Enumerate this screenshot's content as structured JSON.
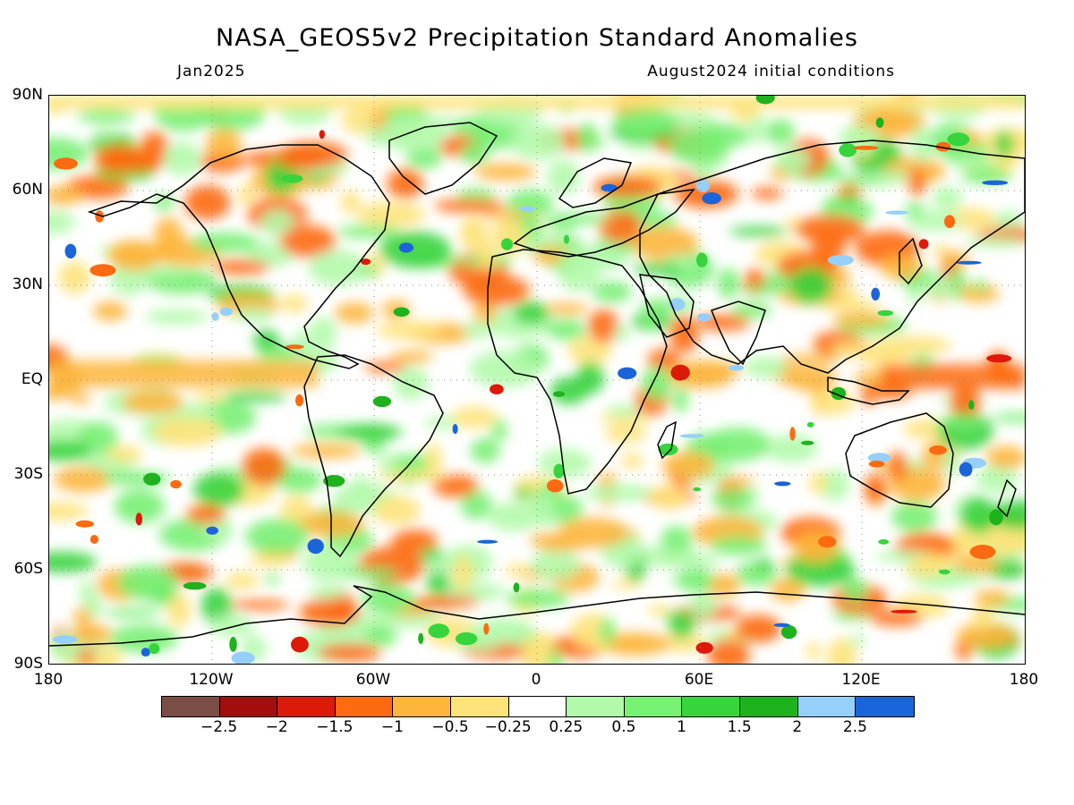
{
  "header": {
    "title": "NASA_GEOS5v2 Precipitation Standard Anomalies",
    "month": "Jan2025",
    "initial_conditions": "August2024 initial conditions"
  },
  "map": {
    "lat_labels": [
      "90N",
      "60N",
      "30N",
      "EQ",
      "30S",
      "60S",
      "90S"
    ],
    "lon_labels": [
      "180",
      "120W",
      "60W",
      "0",
      "60E",
      "120E",
      "180"
    ],
    "background_pattern": "precipitation-anomaly-field",
    "coastline_color": "#000000"
  },
  "legend": {
    "colors": [
      "#7a4e45",
      "#a30d0d",
      "#dd1a0a",
      "#fd6a11",
      "#fdb53b",
      "#fde37a",
      "#ffffff",
      "#b3f9ab",
      "#78f073",
      "#37d43d",
      "#1eb21e",
      "#96d0fa",
      "#1b64d9"
    ],
    "labels": [
      "-2.5",
      "-2",
      "-1.5",
      "-1",
      "-0.5",
      "-0.25",
      "0.25",
      "0.5",
      "1",
      "1.5",
      "2",
      "2.5"
    ]
  }
}
